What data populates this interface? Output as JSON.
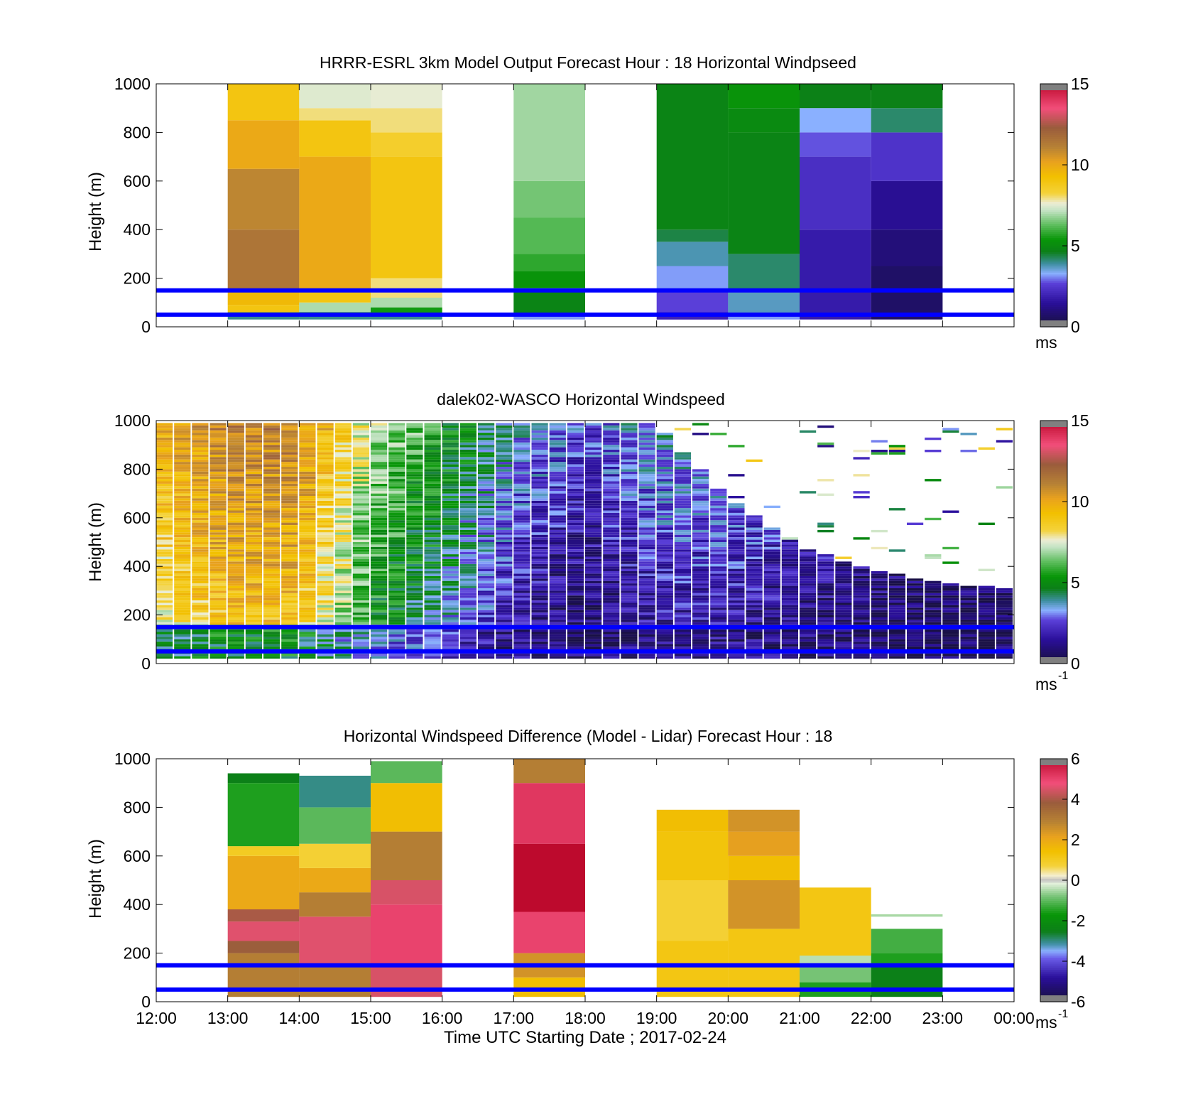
{
  "figure": {
    "xlabel": "Time UTC  Starting Date ; 2017-02-24",
    "xticks": [
      "12:00",
      "13:00",
      "14:00",
      "15:00",
      "16:00",
      "17:00",
      "18:00",
      "19:00",
      "20:00",
      "21:00",
      "22:00",
      "23:00",
      "00:00"
    ],
    "reference_line_color": "#0000ff",
    "reference_heights_m": [
      50,
      150
    ]
  },
  "chart_data": [
    {
      "type": "heatmap",
      "title": "HRRR-ESRL 3km Model Output   Forecast Hour : 18 Horizontal Windpseed",
      "ylabel": "Height (m)",
      "ylim": [
        0,
        1000
      ],
      "yticks": [
        "0",
        "200",
        "400",
        "600",
        "800",
        "1000"
      ],
      "xlim_hours": [
        12,
        24
      ],
      "colorbar": {
        "min": 0,
        "max": 15,
        "ticks": [
          "0",
          "5",
          "10",
          "15"
        ],
        "unit": "ms",
        "unit_sup": "",
        "palette": "speed"
      },
      "columns": [
        {
          "t0": 13,
          "t1": 14,
          "bands": [
            [
              30,
              45,
              4
            ],
            [
              45,
              60,
              6
            ],
            [
              60,
              90,
              9
            ],
            [
              90,
              150,
              9.5
            ],
            [
              150,
              400,
              11.5
            ],
            [
              400,
              650,
              11
            ],
            [
              650,
              850,
              10
            ],
            [
              850,
              1000,
              9
            ]
          ]
        },
        {
          "t0": 14,
          "t1": 15,
          "bands": [
            [
              30,
              45,
              4
            ],
            [
              45,
              60,
              5
            ],
            [
              60,
              100,
              7
            ],
            [
              100,
              150,
              9
            ],
            [
              150,
              700,
              10
            ],
            [
              700,
              850,
              9
            ],
            [
              850,
              900,
              8
            ],
            [
              900,
              1000,
              7.5
            ]
          ]
        },
        {
          "t0": 15,
          "t1": 16,
          "bands": [
            [
              30,
              50,
              4
            ],
            [
              50,
              80,
              5.5
            ],
            [
              80,
              120,
              7
            ],
            [
              120,
              200,
              8
            ],
            [
              200,
              700,
              9
            ],
            [
              700,
              800,
              8.5
            ],
            [
              800,
              900,
              8
            ],
            [
              900,
              1000,
              7.6
            ]
          ]
        },
        {
          "t0": 17,
          "t1": 18,
          "bands": [
            [
              30,
              45,
              3.2
            ],
            [
              45,
              160,
              4.8
            ],
            [
              160,
              230,
              5.3
            ],
            [
              230,
              300,
              5.8
            ],
            [
              300,
              450,
              6.2
            ],
            [
              450,
              600,
              6.5
            ],
            [
              600,
              1000,
              6.9
            ]
          ]
        },
        {
          "t0": 19,
          "t1": 20,
          "bands": [
            [
              30,
              60,
              2
            ],
            [
              60,
              150,
              2.7
            ],
            [
              150,
              250,
              3.2
            ],
            [
              250,
              350,
              3.8
            ],
            [
              350,
              400,
              4.4
            ],
            [
              400,
              1000,
              4.8
            ]
          ]
        },
        {
          "t0": 20,
          "t1": 21,
          "bands": [
            [
              30,
              50,
              3.2
            ],
            [
              50,
              150,
              3.7
            ],
            [
              150,
              300,
              4.2
            ],
            [
              300,
              800,
              4.8
            ],
            [
              800,
              900,
              5
            ],
            [
              900,
              1000,
              5.3
            ]
          ]
        },
        {
          "t0": 21,
          "t1": 22,
          "bands": [
            [
              30,
              400,
              1.8
            ],
            [
              400,
              700,
              2.3
            ],
            [
              700,
              800,
              2.8
            ],
            [
              800,
              900,
              3.3
            ],
            [
              900,
              1000,
              4.7
            ]
          ]
        },
        {
          "t0": 22,
          "t1": 23,
          "bands": [
            [
              30,
              250,
              0.7
            ],
            [
              250,
              400,
              1
            ],
            [
              400,
              600,
              1.4
            ],
            [
              600,
              800,
              2.4
            ],
            [
              800,
              900,
              4.2
            ],
            [
              900,
              1000,
              4.7
            ]
          ]
        }
      ]
    },
    {
      "type": "heatmap",
      "title": "dalek02-WASCO  Horizontal Windspeed",
      "ylabel": "Height (m)",
      "ylim": [
        0,
        1000
      ],
      "yticks": [
        "0",
        "200",
        "400",
        "600",
        "800",
        "1000"
      ],
      "xlim_hours": [
        12,
        24
      ],
      "colorbar": {
        "min": 0,
        "max": 15,
        "ticks": [
          "0",
          "5",
          "10",
          "15"
        ],
        "unit": "ms",
        "unit_sup": "-1",
        "palette": "speed"
      },
      "trend_hours": [
        12,
        13,
        14,
        15,
        16,
        17,
        18,
        19,
        20,
        21,
        22,
        23,
        24
      ],
      "trend_speed_ms": [
        8.5,
        10,
        10,
        6,
        4.5,
        2.5,
        1.5,
        2.5,
        2.5,
        2,
        1.5,
        1.2,
        1.2
      ],
      "coverage_top_m": [
        980,
        980,
        980,
        980,
        980,
        980,
        980,
        980,
        680,
        480,
        380,
        330,
        300
      ]
    },
    {
      "type": "heatmap",
      "title": "Horizontal Windspeed Difference (Model - Lidar) Forecast Hour : 18",
      "ylabel": "Height (m)",
      "ylim": [
        0,
        1000
      ],
      "yticks": [
        "0",
        "200",
        "400",
        "600",
        "800",
        "1000"
      ],
      "xlim_hours": [
        12,
        24
      ],
      "colorbar": {
        "min": -6,
        "max": 6,
        "ticks": [
          "-6",
          "-4",
          "-2",
          "0",
          "2",
          "4",
          "6"
        ],
        "unit": "ms",
        "unit_sup": "-1",
        "palette": "diff"
      },
      "columns": [
        {
          "t0": 13,
          "t1": 14,
          "bands": [
            [
              20,
              200,
              3
            ],
            [
              200,
              250,
              3.8
            ],
            [
              250,
              330,
              4.6
            ],
            [
              330,
              380,
              4
            ],
            [
              380,
              600,
              2
            ],
            [
              600,
              640,
              1
            ],
            [
              640,
              900,
              -1.5
            ],
            [
              900,
              940,
              -2.5
            ]
          ]
        },
        {
          "t0": 14,
          "t1": 15,
          "bands": [
            [
              20,
              150,
              3
            ],
            [
              150,
              350,
              4.6
            ],
            [
              350,
              450,
              3
            ],
            [
              450,
              550,
              2
            ],
            [
              550,
              650,
              0.8
            ],
            [
              650,
              800,
              -1
            ],
            [
              800,
              930,
              -3
            ]
          ]
        },
        {
          "t0": 15,
          "t1": 16,
          "bands": [
            [
              20,
              150,
              4.5
            ],
            [
              150,
              400,
              5
            ],
            [
              400,
              500,
              4.5
            ],
            [
              500,
              700,
              3
            ],
            [
              700,
              900,
              1.5
            ],
            [
              900,
              990,
              -1
            ]
          ]
        },
        {
          "t0": 17,
          "t1": 18,
          "bands": [
            [
              20,
              100,
              1.5
            ],
            [
              100,
              200,
              2.5
            ],
            [
              200,
              370,
              5
            ],
            [
              370,
              650,
              6.3
            ],
            [
              650,
              900,
              5.2
            ],
            [
              900,
              1000,
              3
            ]
          ]
        },
        {
          "t0": 19,
          "t1": 20,
          "bands": [
            [
              20,
              250,
              1.2
            ],
            [
              250,
              500,
              0.8
            ],
            [
              500,
              700,
              1.3
            ],
            [
              700,
              790,
              1.5
            ]
          ]
        },
        {
          "t0": 20,
          "t1": 21,
          "bands": [
            [
              20,
              300,
              1.2
            ],
            [
              300,
              500,
              2.5
            ],
            [
              500,
              600,
              1.5
            ],
            [
              600,
              700,
              2.2
            ],
            [
              700,
              790,
              2.5
            ]
          ]
        },
        {
          "t0": 21,
          "t1": 22,
          "bands": [
            [
              20,
              80,
              -1.5
            ],
            [
              80,
              150,
              -0.8
            ],
            [
              150,
              190,
              -0.4
            ],
            [
              190,
              470,
              1.2
            ]
          ]
        },
        {
          "t0": 22,
          "t1": 23,
          "bands": [
            [
              20,
              150,
              -2.5
            ],
            [
              150,
              200,
              -1.5
            ],
            [
              200,
              300,
              -1.2
            ],
            [
              350,
              360,
              -0.5
            ]
          ]
        }
      ]
    }
  ]
}
